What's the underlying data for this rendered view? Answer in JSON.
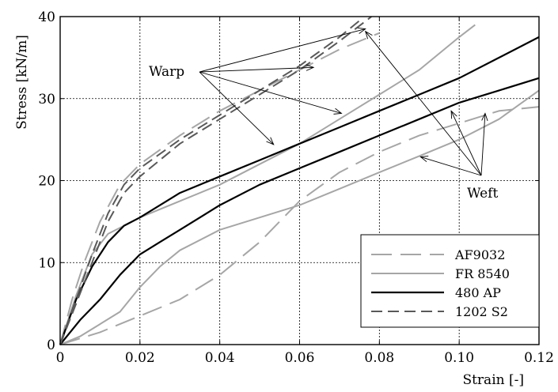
{
  "chart_data": {
    "type": "line",
    "xlabel": "Strain [-]",
    "ylabel": "Stress [kN/m]",
    "xlim": [
      0,
      0.12
    ],
    "ylim": [
      0,
      40
    ],
    "xticks": [
      "0",
      "0.02",
      "0.04",
      "0.06",
      "0.08",
      "0.10",
      "0.12"
    ],
    "yticks": [
      "0",
      "10",
      "20",
      "30",
      "40"
    ],
    "grid": true,
    "legend_position": "bottom-right",
    "annotations": {
      "warp": "Warp",
      "weft": "Weft"
    },
    "series": [
      {
        "name": "AF9032",
        "direction": "Warp",
        "color": "#a6a6a6",
        "dash": "long",
        "x": [
          0,
          0.003,
          0.006,
          0.01,
          0.015,
          0.02,
          0.03,
          0.04,
          0.05,
          0.06,
          0.07,
          0.08
        ],
        "y": [
          0,
          5.5,
          10,
          15,
          19.5,
          22,
          25.5,
          28.5,
          31,
          33.5,
          36,
          38
        ]
      },
      {
        "name": "AF9032",
        "direction": "Weft",
        "color": "#a6a6a6",
        "dash": "long",
        "x": [
          0,
          0.01,
          0.02,
          0.03,
          0.04,
          0.05,
          0.06,
          0.07,
          0.08,
          0.09,
          0.1,
          0.11,
          0.12
        ],
        "y": [
          0,
          1.5,
          3.5,
          5.5,
          8.5,
          12.5,
          17.5,
          21,
          23.5,
          25.5,
          27,
          28.5,
          29
        ]
      },
      {
        "name": "FR 8540",
        "direction": "Warp",
        "color": "#a6a6a6",
        "dash": "solid",
        "x": [
          0,
          0.004,
          0.008,
          0.012,
          0.016,
          0.02,
          0.03,
          0.04,
          0.05,
          0.06,
          0.07,
          0.08,
          0.09,
          0.1,
          0.104
        ],
        "y": [
          0,
          6,
          11,
          13.5,
          14.5,
          15.5,
          17.5,
          19.5,
          22,
          24.5,
          27.5,
          30.5,
          33.5,
          37.5,
          39
        ]
      },
      {
        "name": "FR 8540",
        "direction": "Weft",
        "color": "#a6a6a6",
        "dash": "solid",
        "x": [
          0,
          0.005,
          0.01,
          0.015,
          0.02,
          0.025,
          0.03,
          0.04,
          0.05,
          0.06,
          0.07,
          0.08,
          0.09,
          0.1,
          0.11,
          0.12
        ],
        "y": [
          0,
          1,
          2.5,
          4,
          7,
          9.5,
          11.5,
          14,
          15.5,
          17,
          19,
          21,
          23,
          25,
          27.5,
          31
        ]
      },
      {
        "name": "480 AP",
        "direction": "Warp",
        "color": "#000000",
        "dash": "solid",
        "x": [
          0,
          0.004,
          0.008,
          0.012,
          0.016,
          0.02,
          0.03,
          0.04,
          0.05,
          0.06,
          0.07,
          0.08,
          0.09,
          0.1,
          0.11,
          0.12
        ],
        "y": [
          0,
          5.5,
          9.5,
          12.5,
          14.5,
          15.5,
          18.5,
          20.5,
          22.5,
          24.5,
          26.5,
          28.5,
          30.5,
          32.5,
          35,
          37.5
        ]
      },
      {
        "name": "480 AP",
        "direction": "Weft",
        "color": "#000000",
        "dash": "solid",
        "x": [
          0,
          0.005,
          0.01,
          0.015,
          0.02,
          0.025,
          0.03,
          0.04,
          0.05,
          0.06,
          0.07,
          0.08,
          0.09,
          0.1,
          0.11,
          0.12
        ],
        "y": [
          0,
          3,
          5.5,
          8.5,
          11,
          12.5,
          14,
          17,
          19.5,
          21.5,
          23.5,
          25.5,
          27.5,
          29.5,
          31,
          32.5
        ]
      },
      {
        "name": "1202 S2",
        "direction": "Warp",
        "color": "#595959",
        "dash": "dashed",
        "x": [
          0,
          0.004,
          0.008,
          0.012,
          0.016,
          0.02,
          0.03,
          0.04,
          0.05,
          0.06,
          0.07,
          0.075
        ],
        "y": [
          0,
          5.5,
          11,
          16,
          19.5,
          21.5,
          25,
          28,
          31,
          34,
          37.5,
          39.5
        ]
      },
      {
        "name": "1202 S2",
        "direction": "Warp",
        "color": "#595959",
        "dash": "dashed",
        "x": [
          0,
          0.004,
          0.008,
          0.012,
          0.016,
          0.02,
          0.03,
          0.04,
          0.05,
          0.06,
          0.07,
          0.078
        ],
        "y": [
          0,
          5,
          10,
          15,
          18.5,
          20.5,
          24.5,
          27.5,
          30.5,
          33.5,
          37,
          40
        ]
      }
    ],
    "legend": [
      {
        "label": "AF9032",
        "color": "#a6a6a6",
        "dash": "long"
      },
      {
        "label": "FR 8540",
        "color": "#a6a6a6",
        "dash": "solid"
      },
      {
        "label": "480 AP",
        "color": "#000000",
        "dash": "solid"
      },
      {
        "label": "1202 S2",
        "color": "#595959",
        "dash": "dashed"
      }
    ]
  }
}
